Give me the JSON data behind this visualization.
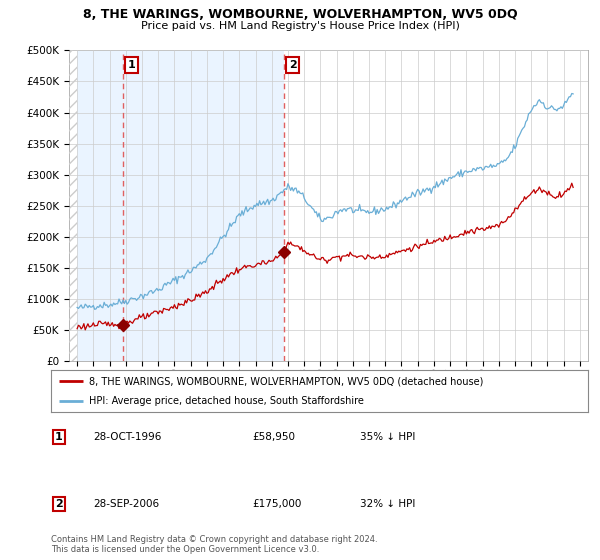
{
  "title": "8, THE WARINGS, WOMBOURNE, WOLVERHAMPTON, WV5 0DQ",
  "subtitle": "Price paid vs. HM Land Registry's House Price Index (HPI)",
  "legend_line1": "8, THE WARINGS, WOMBOURNE, WOLVERHAMPTON, WV5 0DQ (detached house)",
  "legend_line2": "HPI: Average price, detached house, South Staffordshire",
  "annotation1_label": "1",
  "annotation1_date": "28-OCT-1996",
  "annotation1_price": "£58,950",
  "annotation1_hpi": "35% ↓ HPI",
  "annotation2_label": "2",
  "annotation2_date": "28-SEP-2006",
  "annotation2_price": "£175,000",
  "annotation2_hpi": "32% ↓ HPI",
  "footnote": "Contains HM Land Registry data © Crown copyright and database right 2024.\nThis data is licensed under the Open Government Licence v3.0.",
  "hpi_color": "#6aaed6",
  "price_color": "#c00000",
  "dashed_color": "#e06060",
  "marker_color": "#8b0000",
  "shade_color": "#ddeeff",
  "hatch_color": "#cccccc",
  "background_color": "#ffffff",
  "grid_color": "#cccccc",
  "ylim": [
    0,
    500000
  ],
  "yticks": [
    0,
    50000,
    100000,
    150000,
    200000,
    250000,
    300000,
    350000,
    400000,
    450000,
    500000
  ],
  "purchase1_x": 1996.83,
  "purchase1_y": 58950,
  "purchase2_x": 2006.75,
  "purchase2_y": 175000,
  "hatch_end": 1994.0,
  "xlim_start": 1993.5,
  "xlim_end": 2025.5
}
